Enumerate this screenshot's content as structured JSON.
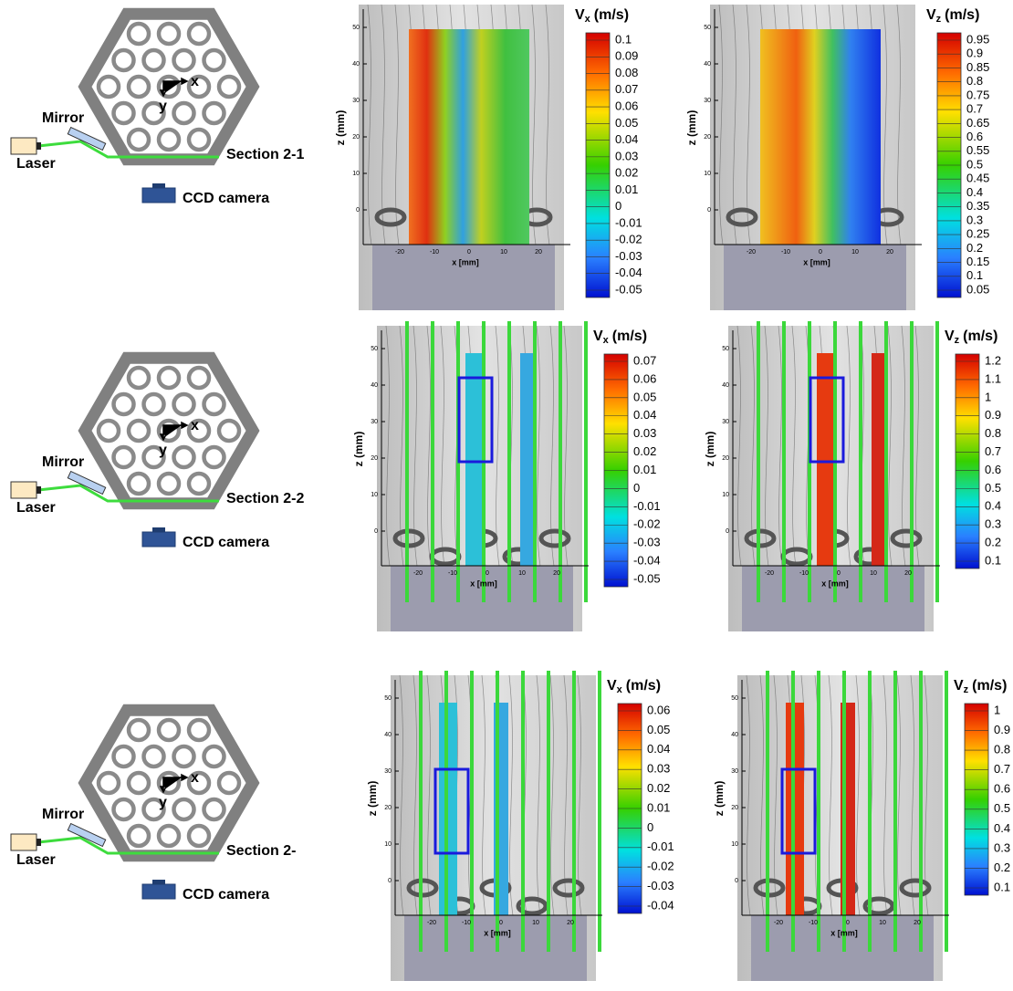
{
  "rows": [
    {
      "schematic": {
        "mirror": "Mirror",
        "laser": "Laser",
        "section": "Section 2-1",
        "camera": "CCD camera",
        "x": "x",
        "y": "y"
      },
      "plots": [
        {
          "ylabel": "z (mm)",
          "xlabel": "x [mm]",
          "yticks": [
            "0",
            "10",
            "20",
            "30",
            "40",
            "50"
          ],
          "xticks": [
            "-20",
            "-10",
            "0",
            "10",
            "20"
          ],
          "colorbar": {
            "symbol": "V",
            "sub": "x",
            "unit": "(m/s)",
            "ticks": [
              "0.1",
              "0.09",
              "0.08",
              "0.07",
              "0.06",
              "0.05",
              "0.04",
              "0.03",
              "0.02",
              "0.01",
              "0",
              "-0.01",
              "-0.02",
              "-0.03",
              "-0.04",
              "-0.05"
            ]
          }
        },
        {
          "ylabel": "z (mm)",
          "xlabel": "x [mm]",
          "yticks": [
            "0",
            "10",
            "20",
            "30",
            "40",
            "50"
          ],
          "xticks": [
            "-20",
            "-10",
            "0",
            "10",
            "20"
          ],
          "colorbar": {
            "symbol": "V",
            "sub": "z",
            "unit": "(m/s)",
            "ticks": [
              "0.95",
              "0.9",
              "0.85",
              "0.8",
              "0.75",
              "0.7",
              "0.65",
              "0.6",
              "0.55",
              "0.5",
              "0.45",
              "0.4",
              "0.35",
              "0.3",
              "0.25",
              "0.2",
              "0.15",
              "0.1",
              "0.05"
            ]
          }
        }
      ]
    },
    {
      "schematic": {
        "mirror": "Mirror",
        "laser": "Laser",
        "section": "Section 2-2",
        "camera": "CCD camera",
        "x": "x",
        "y": "y"
      },
      "plots": [
        {
          "ylabel": "z (mm)",
          "xlabel": "x [mm]",
          "yticks": [
            "0",
            "10",
            "20",
            "30",
            "40",
            "50"
          ],
          "xticks": [
            "-20",
            "-10",
            "0",
            "10",
            "20"
          ],
          "colorbar": {
            "symbol": "V",
            "sub": "x",
            "unit": "(m/s)",
            "ticks": [
              "0.07",
              "0.06",
              "0.05",
              "0.04",
              "0.03",
              "0.02",
              "0.01",
              "0",
              "-0.01",
              "-0.02",
              "-0.03",
              "-0.04",
              "-0.05"
            ]
          }
        },
        {
          "ylabel": "z (mm)",
          "xlabel": "x [mm]",
          "yticks": [
            "0",
            "10",
            "20",
            "30",
            "40",
            "50"
          ],
          "xticks": [
            "-20",
            "-10",
            "0",
            "10",
            "20"
          ],
          "colorbar": {
            "symbol": "V",
            "sub": "z",
            "unit": "(m/s)",
            "ticks": [
              "1.2",
              "1.1",
              "1",
              "0.9",
              "0.8",
              "0.7",
              "0.6",
              "0.5",
              "0.4",
              "0.3",
              "0.2",
              "0.1"
            ]
          }
        }
      ]
    },
    {
      "schematic": {
        "mirror": "Mirror",
        "laser": "Laser",
        "section": "Section 2-",
        "camera": "CCD camera",
        "x": "x",
        "y": "y"
      },
      "plots": [
        {
          "ylabel": "z (mm)",
          "xlabel": "x [mm]",
          "yticks": [
            "0",
            "10",
            "20",
            "30",
            "40",
            "50"
          ],
          "xticks": [
            "-20",
            "-10",
            "0",
            "10",
            "20"
          ],
          "colorbar": {
            "symbol": "V",
            "sub": "x",
            "unit": "(m/s)",
            "ticks": [
              "0.06",
              "0.05",
              "0.04",
              "0.03",
              "0.02",
              "0.01",
              "0",
              "-0.01",
              "-0.02",
              "-0.03",
              "-0.04"
            ]
          }
        },
        {
          "ylabel": "z (mm)",
          "xlabel": "x [mm]",
          "yticks": [
            "0",
            "10",
            "20",
            "30",
            "40",
            "50"
          ],
          "xticks": [
            "-20",
            "-10",
            "0",
            "10",
            "20"
          ],
          "colorbar": {
            "symbol": "V",
            "sub": "z",
            "unit": "(m/s)",
            "ticks": [
              "1",
              "0.9",
              "0.8",
              "0.7",
              "0.6",
              "0.5",
              "0.4",
              "0.3",
              "0.2",
              "0.1"
            ]
          }
        }
      ]
    }
  ]
}
